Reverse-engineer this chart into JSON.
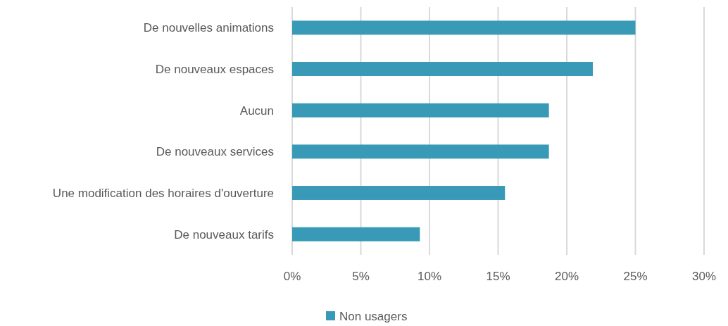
{
  "chart_data": {
    "type": "bar",
    "orientation": "horizontal",
    "categories": [
      "De nouvelles animations",
      "De nouveaux espaces",
      "Aucun",
      "De nouveaux services",
      "Une modification des horaires d'ouverture",
      "De nouveaux tarifs"
    ],
    "series": [
      {
        "name": "Non usagers",
        "color": "#389ab6",
        "values": [
          25,
          21.9,
          18.7,
          18.7,
          15.5,
          9.3
        ]
      }
    ],
    "xlim": [
      0,
      30
    ],
    "xticks": [
      {
        "value": 0,
        "label": "0%"
      },
      {
        "value": 5,
        "label": "5%"
      },
      {
        "value": 10,
        "label": "10%"
      },
      {
        "value": 15,
        "label": "15%"
      },
      {
        "value": 20,
        "label": "20%"
      },
      {
        "value": 25,
        "label": "25%"
      },
      {
        "value": 30,
        "label": "30%"
      }
    ],
    "grid": "x",
    "legend": "bottom"
  }
}
